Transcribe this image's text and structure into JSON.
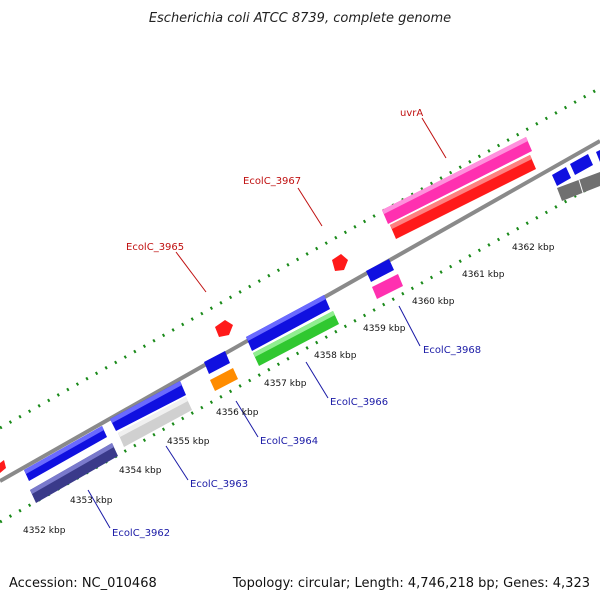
{
  "title": "Escherichia coli ATCC 8739, complete genome",
  "footer": {
    "accession": "Accession: NC_010468",
    "topology": "Topology: circular; Length: 4,746,218 bp; Genes: 4,323"
  },
  "scale_labels": [
    "4352 kbp",
    "4353 kbp",
    "4354 kbp",
    "4355 kbp",
    "4356 kbp",
    "4357 kbp",
    "4358 kbp",
    "4359 kbp",
    "4360 kbp",
    "4361 kbp",
    "4362 kbp"
  ],
  "gene_labels": {
    "uvrA": "uvrA",
    "ecolc_3967": "EcolC_3967",
    "ecolc_3965": "EcolC_3965",
    "ecolc_3968": "EcolC_3968",
    "ecolc_3966": "EcolC_3966",
    "ecolc_3964": "EcolC_3964",
    "ecolc_3963": "EcolC_3963",
    "ecolc_3962": "EcolC_3962"
  },
  "colors": {
    "backbone": "#8a8a8a",
    "ticks": "#1a8a1a",
    "cds": "#1010e0",
    "uvrA_gene": "#ff1a1a",
    "uvrA_cds": "#ff30b0",
    "gene_ecolc_3966": "#30c830",
    "gene_ecolc_3964": "#ff8c00",
    "gene_ecolc_3963": "#d0d0d0",
    "gene_ecolc_3962": "#3a3a8a",
    "gene_grey": "#707070",
    "small_red": "#ff1a1a"
  }
}
